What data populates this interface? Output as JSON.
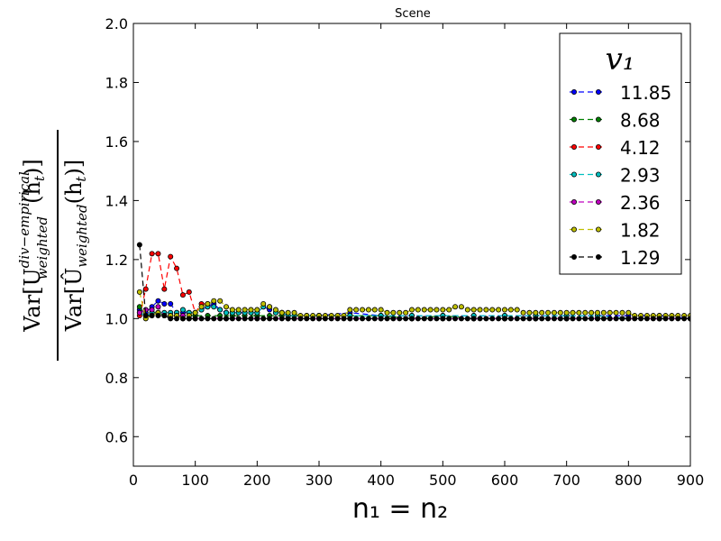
{
  "chart_data": {
    "type": "line",
    "title": "Scene",
    "xlabel": "n₁ = n₂",
    "ylabel": {
      "numerator": "Var[U",
      "num_sup": "div−empirical",
      "num_sub": "weighted",
      "num_tail": "(h",
      "num_tail_sub": "t",
      "num_close": ")]",
      "denominator": "Var[Û",
      "den_sub": "weighted",
      "den_tail": "(h",
      "den_tail_sub": "t",
      "den_close": ")]"
    },
    "xlim": [
      0,
      900
    ],
    "ylim": [
      0.5,
      2.0
    ],
    "xticks": [
      0,
      100,
      200,
      300,
      400,
      500,
      600,
      700,
      800,
      900
    ],
    "yticks": [
      0.6,
      0.8,
      1.0,
      1.2,
      1.4,
      1.6,
      1.8,
      2.0
    ],
    "ytick_labels": [
      "0.6",
      "0.8",
      "1.0",
      "1.2",
      "1.4",
      "1.6",
      "1.8",
      "2.0"
    ],
    "grid": false,
    "legend": {
      "title": "v₁",
      "placement": "top-right"
    },
    "series": [
      {
        "name": "11.85",
        "color": "#0000ff",
        "x": [
          10,
          20,
          30,
          40,
          50,
          60,
          70,
          80,
          90,
          100,
          110,
          120,
          130,
          140,
          150,
          160,
          170,
          180,
          190,
          200,
          210,
          220,
          230,
          240,
          250,
          300,
          350,
          400,
          450,
          500,
          550,
          600,
          650,
          700,
          750,
          800,
          850,
          900
        ],
        "y": [
          1.03,
          1.02,
          1.04,
          1.06,
          1.05,
          1.05,
          1.02,
          1.02,
          1.02,
          1.02,
          1.03,
          1.04,
          1.05,
          1.03,
          1.02,
          1.02,
          1.02,
          1.02,
          1.02,
          1.02,
          1.04,
          1.03,
          1.02,
          1.02,
          1.01,
          1.01,
          1.02,
          1.01,
          1.01,
          1.01,
          1.01,
          1.01,
          1.01,
          1.01,
          1.01,
          1.01,
          1.01,
          1.0
        ]
      },
      {
        "name": "8.68",
        "color": "#008000",
        "x": [
          10,
          20,
          30,
          40,
          50,
          60,
          70,
          80,
          90,
          100,
          120,
          140,
          160,
          180,
          200,
          220,
          240,
          260,
          280,
          300,
          350,
          400,
          450,
          500,
          550,
          600,
          650,
          700,
          750,
          800,
          850,
          900
        ],
        "y": [
          1.04,
          1.01,
          1.02,
          1.02,
          1.01,
          1.01,
          1.01,
          1.01,
          1.01,
          1.01,
          1.01,
          1.01,
          1.01,
          1.01,
          1.01,
          1.01,
          1.01,
          1.01,
          1.01,
          1.01,
          1.01,
          1.01,
          1.0,
          1.01,
          1.0,
          1.0,
          1.0,
          1.0,
          1.0,
          1.0,
          1.0,
          1.0
        ]
      },
      {
        "name": "4.12",
        "color": "#ff0000",
        "x": [
          10,
          20,
          30,
          40,
          50,
          60,
          70,
          80,
          90,
          100,
          110,
          120
        ],
        "y": [
          1.01,
          1.1,
          1.22,
          1.22,
          1.1,
          1.21,
          1.17,
          1.08,
          1.09,
          1.02,
          1.05,
          1.05
        ]
      },
      {
        "name": "2.93",
        "color": "#00bfbf",
        "x": [
          10,
          20,
          30,
          40,
          50,
          60,
          70,
          80,
          90,
          100,
          110,
          120,
          130,
          140,
          150,
          160,
          170,
          180,
          190,
          200,
          210,
          220,
          230,
          240,
          250,
          300,
          350,
          400,
          450,
          500,
          550,
          600,
          650,
          700,
          750,
          800,
          850,
          900
        ],
        "y": [
          1.02,
          1.01,
          1.02,
          1.02,
          1.02,
          1.02,
          1.02,
          1.03,
          1.02,
          1.02,
          1.03,
          1.04,
          1.04,
          1.03,
          1.02,
          1.02,
          1.02,
          1.02,
          1.02,
          1.02,
          1.04,
          1.04,
          1.02,
          1.02,
          1.01,
          1.01,
          1.01,
          1.01,
          1.01,
          1.01,
          1.01,
          1.01,
          1.01,
          1.01,
          1.01,
          1.0,
          1.0,
          1.0
        ]
      },
      {
        "name": "2.36",
        "color": "#bf00bf",
        "x": [
          10,
          20,
          30,
          40,
          50,
          60,
          70,
          80,
          90,
          100,
          150,
          200,
          250,
          300,
          350,
          400,
          450,
          500,
          550,
          600,
          650,
          700,
          750,
          800,
          850,
          900
        ],
        "y": [
          1.02,
          1.03,
          1.03,
          1.04,
          1.01,
          1.01,
          1.01,
          1.01,
          1.0,
          1.0,
          1.0,
          1.0,
          1.0,
          1.0,
          1.0,
          1.0,
          1.0,
          1.0,
          1.0,
          1.0,
          1.0,
          1.0,
          1.0,
          1.0,
          1.0,
          1.0
        ]
      },
      {
        "name": "1.82",
        "color": "#bfbf00",
        "x": [
          10,
          20,
          30,
          40,
          50,
          60,
          70,
          80,
          90,
          100,
          110,
          120,
          130,
          140,
          150,
          160,
          170,
          180,
          190,
          200,
          210,
          220,
          230,
          240,
          250,
          260,
          270,
          280,
          290,
          300,
          310,
          320,
          330,
          340,
          350,
          360,
          370,
          380,
          390,
          400,
          410,
          420,
          430,
          440,
          450,
          460,
          470,
          480,
          490,
          500,
          510,
          520,
          530,
          540,
          550,
          560,
          570,
          580,
          590,
          600,
          610,
          620,
          630,
          640,
          650,
          660,
          670,
          680,
          690,
          700,
          710,
          720,
          730,
          740,
          750,
          760,
          770,
          780,
          790,
          800,
          810,
          820,
          830,
          840,
          850,
          860,
          870,
          880,
          890,
          900
        ],
        "y": [
          1.09,
          1.0,
          1.01,
          1.02,
          1.01,
          1.01,
          1.01,
          1.0,
          1.01,
          1.02,
          1.04,
          1.05,
          1.06,
          1.06,
          1.04,
          1.03,
          1.03,
          1.03,
          1.03,
          1.03,
          1.05,
          1.04,
          1.03,
          1.02,
          1.02,
          1.02,
          1.01,
          1.01,
          1.01,
          1.01,
          1.01,
          1.01,
          1.01,
          1.01,
          1.03,
          1.03,
          1.03,
          1.03,
          1.03,
          1.03,
          1.02,
          1.02,
          1.02,
          1.02,
          1.03,
          1.03,
          1.03,
          1.03,
          1.03,
          1.03,
          1.03,
          1.04,
          1.04,
          1.03,
          1.03,
          1.03,
          1.03,
          1.03,
          1.03,
          1.03,
          1.03,
          1.03,
          1.02,
          1.02,
          1.02,
          1.02,
          1.02,
          1.02,
          1.02,
          1.02,
          1.02,
          1.02,
          1.02,
          1.02,
          1.02,
          1.02,
          1.02,
          1.02,
          1.02,
          1.02,
          1.01,
          1.01,
          1.01,
          1.01,
          1.01,
          1.01,
          1.01,
          1.01,
          1.01,
          1.01
        ]
      },
      {
        "name": "1.29",
        "color": "#000000",
        "x": [
          10,
          20,
          30,
          40,
          50,
          60,
          70,
          80,
          90,
          100,
          110,
          120,
          130,
          140,
          150,
          160,
          170,
          180,
          190,
          200,
          210,
          220,
          230,
          240,
          250,
          260,
          270,
          280,
          290,
          300,
          310,
          320,
          330,
          340,
          350,
          360,
          370,
          380,
          390,
          400,
          410,
          420,
          430,
          440,
          450,
          460,
          470,
          480,
          490,
          500,
          510,
          520,
          530,
          540,
          550,
          560,
          570,
          580,
          590,
          600,
          610,
          620,
          630,
          640,
          650,
          660,
          670,
          680,
          690,
          700,
          710,
          720,
          730,
          740,
          750,
          760,
          770,
          780,
          790,
          800,
          810,
          820,
          830,
          840,
          850,
          860,
          870,
          880,
          890,
          900
        ],
        "y": [
          1.25,
          1.01,
          1.01,
          1.01,
          1.01,
          1.0,
          1.0,
          1.0,
          1.0,
          1.0,
          1.0,
          1.0,
          1.0,
          1.0,
          1.0,
          1.0,
          1.0,
          1.0,
          1.0,
          1.0,
          1.0,
          1.0,
          1.0,
          1.0,
          1.0,
          1.0,
          1.0,
          1.0,
          1.0,
          1.0,
          1.0,
          1.0,
          1.0,
          1.0,
          1.0,
          1.0,
          1.0,
          1.0,
          1.0,
          1.0,
          1.0,
          1.0,
          1.0,
          1.0,
          1.0,
          1.0,
          1.0,
          1.0,
          1.0,
          1.0,
          1.0,
          1.0,
          1.0,
          1.0,
          1.0,
          1.0,
          1.0,
          1.0,
          1.0,
          1.0,
          1.0,
          1.0,
          1.0,
          1.0,
          1.0,
          1.0,
          1.0,
          1.0,
          1.0,
          1.0,
          1.0,
          1.0,
          1.0,
          1.0,
          1.0,
          1.0,
          1.0,
          1.0,
          1.0,
          1.0,
          1.0,
          1.0,
          1.0,
          1.0,
          1.0,
          1.0,
          1.0,
          1.0,
          1.0,
          1.0
        ]
      }
    ]
  }
}
